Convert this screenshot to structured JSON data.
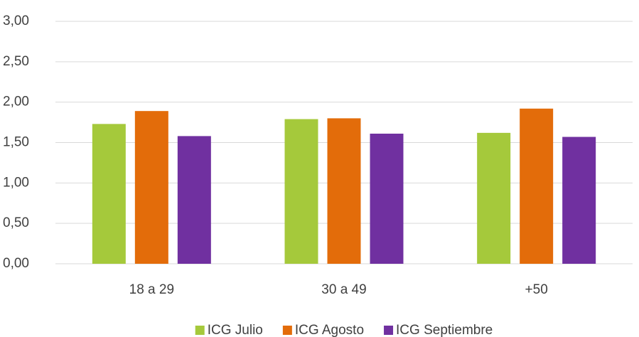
{
  "chart_data": {
    "type": "bar",
    "categories": [
      "18 a 29",
      "30 a 49",
      "+50"
    ],
    "series": [
      {
        "name": "ICG Julio",
        "color": "#a5c93b",
        "values": [
          1.73,
          1.79,
          1.62
        ]
      },
      {
        "name": "ICG Agosto",
        "color": "#e36c0a",
        "values": [
          1.89,
          1.8,
          1.92
        ]
      },
      {
        "name": "ICG Septiembre",
        "color": "#7030a0",
        "values": [
          1.58,
          1.61,
          1.57
        ]
      }
    ],
    "ylim": [
      0,
      3
    ],
    "yticks": [
      {
        "value": 0,
        "label": "0,00"
      },
      {
        "value": 0.5,
        "label": "0,50"
      },
      {
        "value": 1,
        "label": "1,00"
      },
      {
        "value": 1.5,
        "label": "1,50"
      },
      {
        "value": 2,
        "label": "2,00"
      },
      {
        "value": 2.5,
        "label": "2,50"
      },
      {
        "value": 3,
        "label": "3,00"
      }
    ],
    "grid": true,
    "legend": "bottom"
  }
}
